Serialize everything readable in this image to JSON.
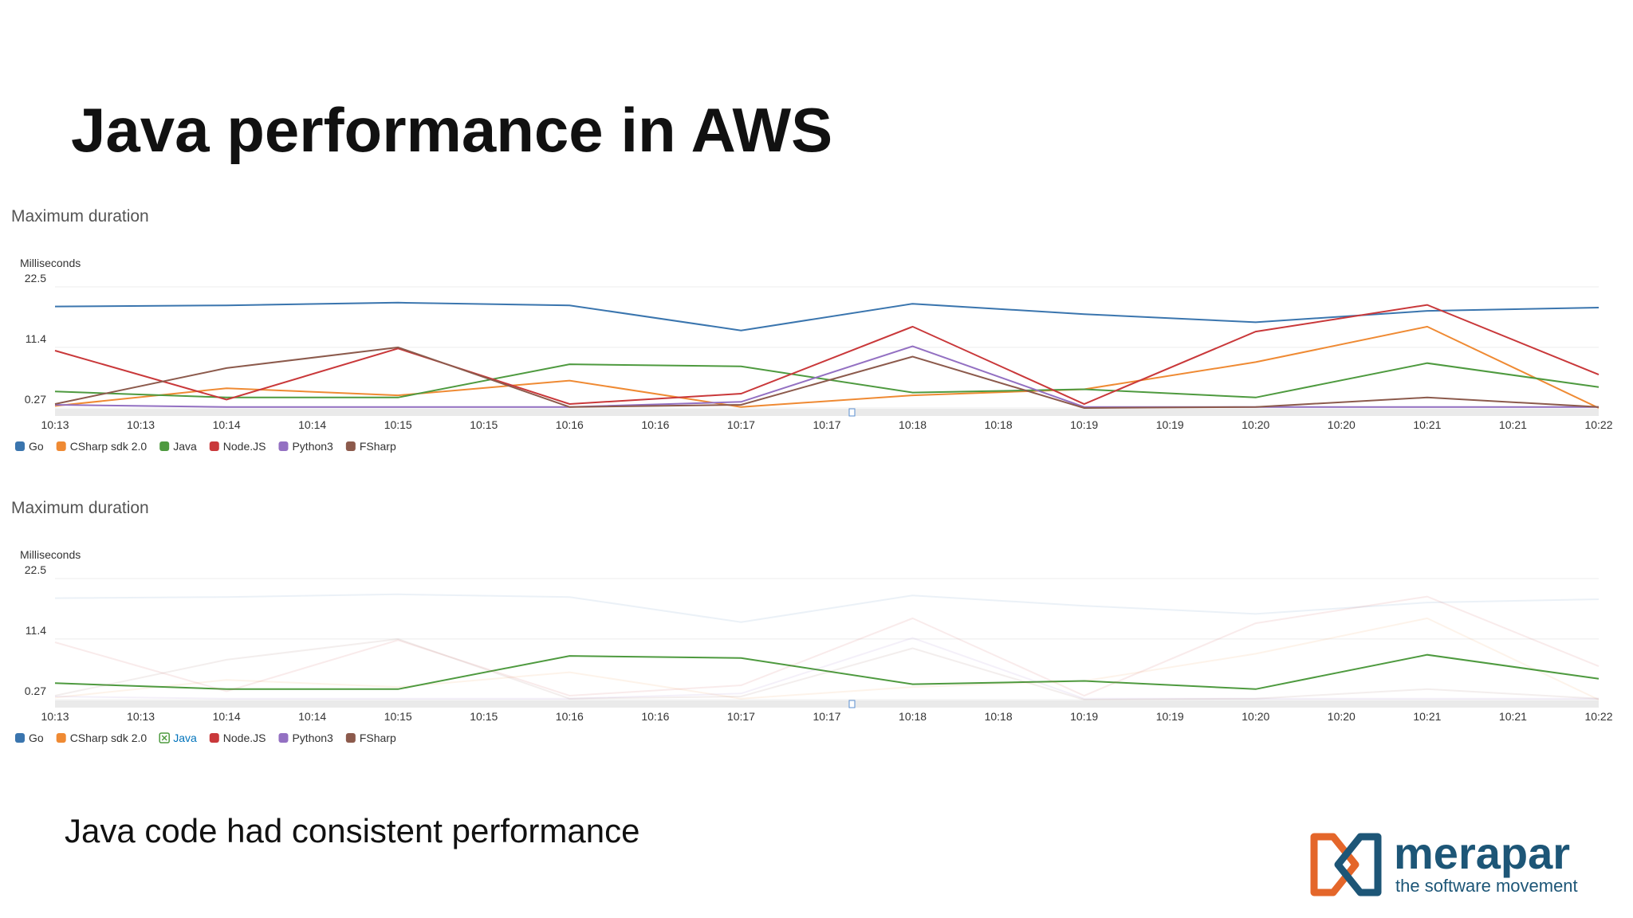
{
  "header": {
    "title": "Java performance in AWS"
  },
  "footer": {
    "text": "Java code had consistent performance",
    "logo_name": "merapar",
    "logo_tagline": "the software movement"
  },
  "chart_data": [
    {
      "type": "line",
      "title": "Maximum duration",
      "y_label": "Milliseconds",
      "x": [
        "10:13",
        "10:14",
        "10:15",
        "10:16",
        "10:17",
        "10:18",
        "10:19",
        "10:20",
        "10:21",
        "10:22"
      ],
      "xticks": [
        "10:13",
        "10:13",
        "10:14",
        "10:14",
        "10:15",
        "10:15",
        "10:16",
        "10:16",
        "10:17",
        "10:17",
        "10:18",
        "10:18",
        "10:19",
        "10:19",
        "10:20",
        "10:20",
        "10:21",
        "10:21",
        "10:22"
      ],
      "ylim": [
        0.27,
        22.5
      ],
      "yticks": [
        0.27,
        11.4,
        22.5
      ],
      "grid": true,
      "series": [
        {
          "name": "Go",
          "color": "#3a75ae",
          "values": [
            18.9,
            19.1,
            19.6,
            19.1,
            14.5,
            19.4,
            17.5,
            16.0,
            18.1,
            18.7
          ]
        },
        {
          "name": "CSharp sdk 2.0",
          "color": "#ef8a33",
          "values": [
            0.65,
            3.9,
            2.6,
            5.3,
            0.46,
            2.6,
            3.7,
            8.7,
            15.2,
            0.27
          ]
        },
        {
          "name": "Java",
          "color": "#4e9a3f",
          "values": [
            3.3,
            2.2,
            2.2,
            8.3,
            7.9,
            3.1,
            3.7,
            2.2,
            8.5,
            4.1
          ]
        },
        {
          "name": "Node.JS",
          "color": "#c9383a",
          "values": [
            10.8,
            1.8,
            11.2,
            1.0,
            2.9,
            15.2,
            1.0,
            14.3,
            19.2,
            6.4
          ]
        },
        {
          "name": "Python3",
          "color": "#9370c2",
          "values": [
            0.85,
            0.46,
            0.46,
            0.46,
            1.4,
            11.6,
            0.46,
            0.46,
            0.46,
            0.46
          ]
        },
        {
          "name": "FSharp",
          "color": "#8c5a4c",
          "values": [
            1.0,
            7.6,
            11.4,
            0.46,
            0.85,
            9.7,
            0.27,
            0.46,
            2.2,
            0.46
          ]
        }
      ]
    },
    {
      "type": "line",
      "title": "Maximum duration",
      "y_label": "Milliseconds",
      "highlight": "Java",
      "x": [
        "10:13",
        "10:14",
        "10:15",
        "10:16",
        "10:17",
        "10:18",
        "10:19",
        "10:20",
        "10:21",
        "10:22"
      ],
      "xticks": [
        "10:13",
        "10:13",
        "10:14",
        "10:14",
        "10:15",
        "10:15",
        "10:16",
        "10:16",
        "10:17",
        "10:17",
        "10:18",
        "10:18",
        "10:19",
        "10:19",
        "10:20",
        "10:20",
        "10:21",
        "10:21",
        "10:22"
      ],
      "ylim": [
        0.27,
        22.5
      ],
      "yticks": [
        0.27,
        11.4,
        22.5
      ],
      "grid": true,
      "series": [
        {
          "name": "Go",
          "color": "#3a75ae",
          "values": [
            18.9,
            19.1,
            19.6,
            19.1,
            14.5,
            19.4,
            17.5,
            16.0,
            18.1,
            18.7
          ]
        },
        {
          "name": "CSharp sdk 2.0",
          "color": "#ef8a33",
          "values": [
            0.65,
            3.9,
            2.6,
            5.3,
            0.46,
            2.6,
            3.7,
            8.7,
            15.2,
            0.27
          ]
        },
        {
          "name": "Java",
          "color": "#4e9a3f",
          "values": [
            3.3,
            2.2,
            2.2,
            8.3,
            7.9,
            3.1,
            3.7,
            2.2,
            8.5,
            4.1
          ]
        },
        {
          "name": "Node.JS",
          "color": "#c9383a",
          "values": [
            10.8,
            1.8,
            11.2,
            1.0,
            2.9,
            15.2,
            1.0,
            14.3,
            19.2,
            6.4
          ]
        },
        {
          "name": "Python3",
          "color": "#9370c2",
          "values": [
            0.85,
            0.46,
            0.46,
            0.46,
            1.4,
            11.6,
            0.46,
            0.46,
            0.46,
            0.46
          ]
        },
        {
          "name": "FSharp",
          "color": "#8c5a4c",
          "values": [
            1.0,
            7.6,
            11.4,
            0.46,
            0.85,
            9.7,
            0.27,
            0.46,
            2.2,
            0.46
          ]
        }
      ]
    }
  ]
}
